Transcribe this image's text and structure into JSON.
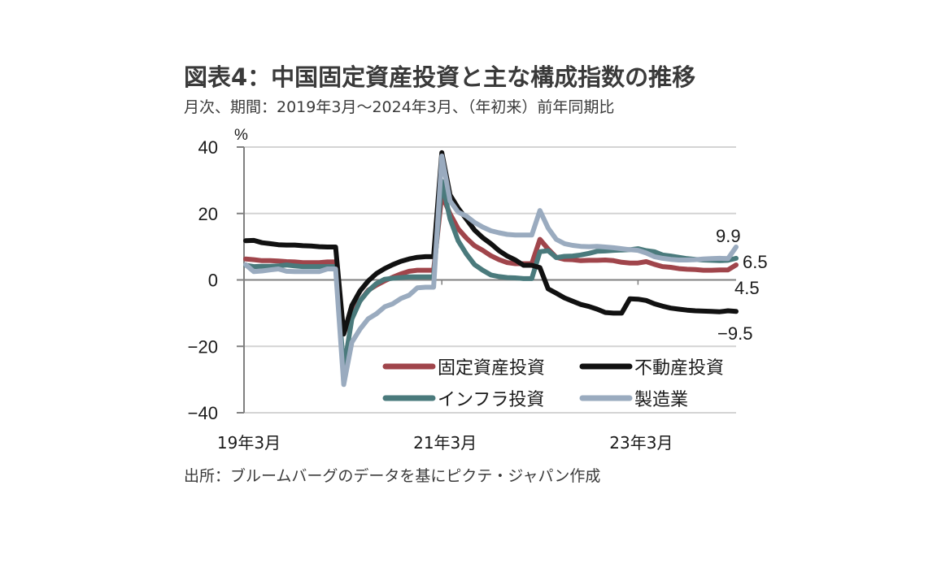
{
  "title": "図表4：中国固定資産投資と主な構成指数の推移",
  "subtitle": "月次、期間：2019年3月～2024年3月、（年初来）前年同期比",
  "source": "出所：ブルームバーグのデータを基にピクテ・ジャパン作成",
  "chart_data": {
    "type": "line",
    "title": "図表4：中国固定資産投資と主な構成指数の推移",
    "ylabel": "%",
    "xlabel": "",
    "ylim": [
      -40,
      40
    ],
    "yticks": [
      40,
      20,
      0,
      -20,
      -40
    ],
    "ytick_labels": [
      "40",
      "20",
      "0",
      "−20",
      "−40"
    ],
    "xtick_labels": [
      {
        "label": "19年3月",
        "month_index": 0
      },
      {
        "label": "21年3月",
        "month_index": 24
      },
      {
        "label": "23年3月",
        "month_index": 48
      }
    ],
    "x_months": 61,
    "grid": "horizontal",
    "legend_position": "bottom-right",
    "series": [
      {
        "name": "固定資産投資",
        "color": "#a0454b",
        "values": [
          6.3,
          6.1,
          5.8,
          5.8,
          5.7,
          5.5,
          5.4,
          5.2,
          5.2,
          5.2,
          5.4,
          5.4,
          -16.1,
          -10.3,
          -6.3,
          -3.1,
          -1.6,
          -0.3,
          0.8,
          1.8,
          2.6,
          2.9,
          2.9,
          2.9,
          25.6,
          19.9,
          15.4,
          12.6,
          10.3,
          8.9,
          7.3,
          6.1,
          5.2,
          4.9,
          4.9,
          4.9,
          12.2,
          9.3,
          6.8,
          6.2,
          6.1,
          5.8,
          5.9,
          5.9,
          6.0,
          5.8,
          5.3,
          5.1,
          5.1,
          5.5,
          4.7,
          4.0,
          3.8,
          3.4,
          3.2,
          3.1,
          2.9,
          2.9,
          3.0,
          3.0,
          4.5
        ],
        "end_label": "4.5"
      },
      {
        "name": "不動産投資",
        "color": "#111111",
        "values": [
          11.8,
          11.9,
          11.2,
          10.9,
          10.6,
          10.5,
          10.5,
          10.3,
          10.2,
          10.0,
          9.9,
          9.9,
          -16.3,
          -7.7,
          -3.3,
          -0.3,
          1.9,
          3.4,
          4.6,
          5.6,
          6.3,
          6.8,
          7.0,
          7.0,
          38.3,
          25.6,
          21.6,
          18.3,
          15.0,
          12.7,
          10.9,
          8.8,
          7.2,
          6.0,
          4.4,
          4.4,
          3.7,
          -2.7,
          -4.0,
          -5.4,
          -6.4,
          -7.4,
          -8.0,
          -8.8,
          -9.8,
          -10.0,
          -10.0,
          -5.7,
          -5.8,
          -6.2,
          -7.2,
          -7.9,
          -8.5,
          -8.8,
          -9.1,
          -9.3,
          -9.4,
          -9.5,
          -9.6,
          -9.3,
          -9.5
        ],
        "end_label": "−9.5"
      },
      {
        "name": "インフラ投資",
        "color": "#4a7a7c",
        "values": [
          4.4,
          4.0,
          4.1,
          4.1,
          4.2,
          4.5,
          4.2,
          4.0,
          4.0,
          4.0,
          4.0,
          4.0,
          -26.9,
          -11.8,
          -6.3,
          -3.3,
          -1.1,
          0.2,
          0.5,
          0.7,
          0.9,
          0.9,
          0.9,
          0.9,
          29.7,
          18.4,
          11.8,
          7.8,
          4.6,
          2.9,
          1.5,
          1.0,
          0.7,
          0.6,
          0.4,
          0.4,
          8.5,
          8.8,
          6.7,
          7.1,
          7.2,
          7.5,
          8.0,
          8.6,
          8.7,
          8.9,
          9.0,
          9.1,
          9.4,
          8.8,
          8.5,
          7.5,
          7.2,
          6.8,
          6.4,
          6.2,
          6.0,
          5.9,
          5.8,
          5.9,
          6.5
        ],
        "end_label": "6.5"
      },
      {
        "name": "製造業",
        "color": "#9aabbf",
        "values": [
          4.6,
          2.5,
          2.7,
          3.0,
          3.3,
          2.6,
          2.5,
          2.5,
          2.5,
          2.5,
          3.3,
          3.3,
          -31.5,
          -18.8,
          -14.8,
          -11.7,
          -10.2,
          -8.1,
          -7.2,
          -5.6,
          -4.6,
          -2.4,
          -2.2,
          -2.2,
          37.3,
          23.8,
          20.4,
          19.2,
          17.3,
          15.9,
          14.8,
          14.2,
          13.7,
          13.5,
          13.5,
          13.5,
          20.9,
          15.6,
          12.2,
          10.9,
          10.4,
          10.1,
          10.0,
          10.1,
          9.9,
          9.7,
          9.4,
          9.1,
          8.9,
          8.1,
          7.0,
          6.5,
          6.2,
          6.0,
          6.0,
          6.1,
          6.3,
          6.4,
          6.5,
          6.4,
          9.9
        ],
        "end_label": "9.9"
      }
    ]
  }
}
